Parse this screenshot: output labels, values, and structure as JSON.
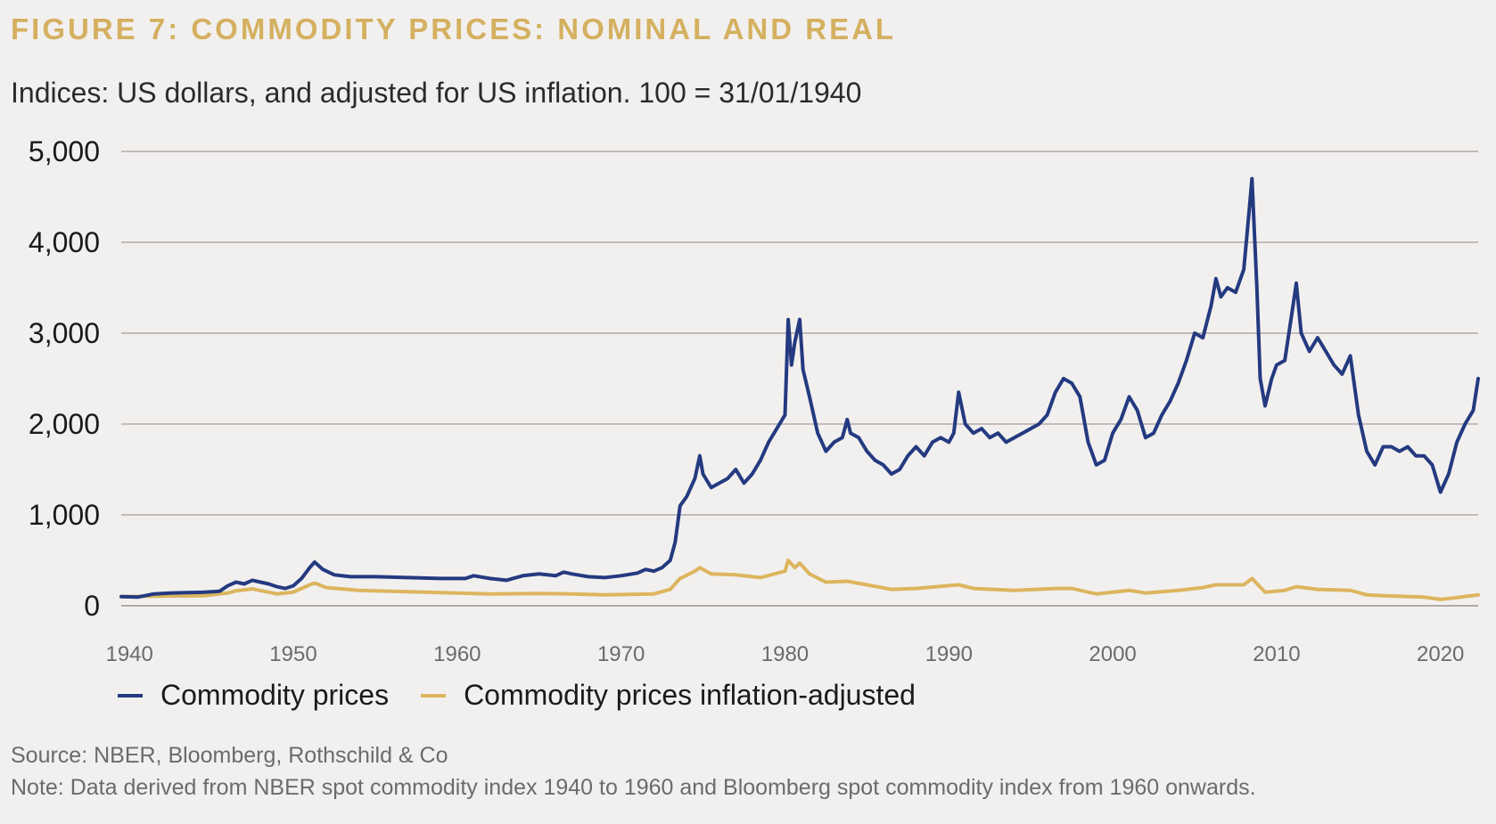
{
  "header": {
    "title": "FIGURE 7: COMMODITY PRICES: NOMINAL AND REAL",
    "subtitle": "Indices: US dollars, and adjusted for US inflation. 100 = 31/01/1940"
  },
  "footer": {
    "source": "Source: NBER, Bloomberg, Rothschild & Co",
    "note": "Note: Data derived from NBER spot commodity index 1940 to 1960 and Bloomberg spot commodity index from 1960 onwards."
  },
  "colors": {
    "nominal": "#243a80",
    "real": "#dcb55e",
    "title": "#d4b060",
    "grid": "#a99a9a"
  },
  "chart_data": {
    "type": "line",
    "title": "FIGURE 7: COMMODITY PRICES: NOMINAL AND REAL",
    "subtitle": "Indices: US dollars, and adjusted for US inflation. 100 = 31/01/1940",
    "xlabel": "",
    "ylabel": "",
    "xlim": [
      1939.5,
      2022.3
    ],
    "ylim": [
      0,
      5000
    ],
    "grid": true,
    "legend_position": "bottom-left",
    "x_ticks": [
      1940,
      1950,
      1960,
      1970,
      1980,
      1990,
      2000,
      2010,
      2020
    ],
    "x_tick_labels": [
      "1940",
      "1950",
      "1960",
      "1970",
      "1980",
      "1990",
      "2000",
      "2010",
      "2020"
    ],
    "y_ticks": [
      0,
      1000,
      2000,
      3000,
      4000,
      5000
    ],
    "y_tick_labels": [
      "0",
      "1,000",
      "2,000",
      "3,000",
      "4,000",
      "5,000"
    ],
    "series": [
      {
        "name": "Commodity prices",
        "color": "#243a80",
        "points": [
          [
            1939.5,
            100
          ],
          [
            1940.5,
            95
          ],
          [
            1941.5,
            130
          ],
          [
            1942.5,
            140
          ],
          [
            1943.5,
            145
          ],
          [
            1944.5,
            148
          ],
          [
            1945.5,
            160
          ],
          [
            1946.0,
            220
          ],
          [
            1946.5,
            260
          ],
          [
            1947.0,
            240
          ],
          [
            1947.5,
            280
          ],
          [
            1948.0,
            260
          ],
          [
            1948.5,
            240
          ],
          [
            1949.0,
            210
          ],
          [
            1949.5,
            190
          ],
          [
            1950.0,
            220
          ],
          [
            1950.5,
            300
          ],
          [
            1951.0,
            420
          ],
          [
            1951.3,
            480
          ],
          [
            1951.8,
            400
          ],
          [
            1952.5,
            340
          ],
          [
            1953.5,
            320
          ],
          [
            1955.0,
            320
          ],
          [
            1957.0,
            310
          ],
          [
            1959.0,
            300
          ],
          [
            1960.5,
            300
          ],
          [
            1961.0,
            330
          ],
          [
            1962.0,
            300
          ],
          [
            1963.0,
            280
          ],
          [
            1964.0,
            330
          ],
          [
            1965.0,
            350
          ],
          [
            1966.0,
            330
          ],
          [
            1966.5,
            370
          ],
          [
            1967.0,
            350
          ],
          [
            1968.0,
            320
          ],
          [
            1969.0,
            310
          ],
          [
            1970.0,
            330
          ],
          [
            1971.0,
            360
          ],
          [
            1971.5,
            400
          ],
          [
            1972.0,
            380
          ],
          [
            1972.5,
            420
          ],
          [
            1973.0,
            500
          ],
          [
            1973.3,
            700
          ],
          [
            1973.6,
            1100
          ],
          [
            1974.0,
            1200
          ],
          [
            1974.5,
            1400
          ],
          [
            1974.8,
            1650
          ],
          [
            1975.0,
            1450
          ],
          [
            1975.5,
            1300
          ],
          [
            1976.0,
            1350
          ],
          [
            1976.5,
            1400
          ],
          [
            1977.0,
            1500
          ],
          [
            1977.5,
            1350
          ],
          [
            1978.0,
            1450
          ],
          [
            1978.5,
            1600
          ],
          [
            1979.0,
            1800
          ],
          [
            1979.5,
            1950
          ],
          [
            1980.0,
            2100
          ],
          [
            1980.2,
            3150
          ],
          [
            1980.4,
            2650
          ],
          [
            1980.6,
            2900
          ],
          [
            1980.9,
            3150
          ],
          [
            1981.1,
            2600
          ],
          [
            1981.5,
            2300
          ],
          [
            1982.0,
            1900
          ],
          [
            1982.5,
            1700
          ],
          [
            1983.0,
            1800
          ],
          [
            1983.5,
            1850
          ],
          [
            1983.8,
            2050
          ],
          [
            1984.0,
            1900
          ],
          [
            1984.5,
            1850
          ],
          [
            1985.0,
            1700
          ],
          [
            1985.5,
            1600
          ],
          [
            1986.0,
            1550
          ],
          [
            1986.5,
            1450
          ],
          [
            1987.0,
            1500
          ],
          [
            1987.5,
            1650
          ],
          [
            1988.0,
            1750
          ],
          [
            1988.5,
            1650
          ],
          [
            1989.0,
            1800
          ],
          [
            1989.5,
            1850
          ],
          [
            1990.0,
            1800
          ],
          [
            1990.3,
            1900
          ],
          [
            1990.6,
            2350
          ],
          [
            1991.0,
            2000
          ],
          [
            1991.5,
            1900
          ],
          [
            1992.0,
            1950
          ],
          [
            1992.5,
            1850
          ],
          [
            1993.0,
            1900
          ],
          [
            1993.5,
            1800
          ],
          [
            1994.0,
            1850
          ],
          [
            1994.5,
            1900
          ],
          [
            1995.0,
            1950
          ],
          [
            1995.5,
            2000
          ],
          [
            1996.0,
            2100
          ],
          [
            1996.5,
            2350
          ],
          [
            1997.0,
            2500
          ],
          [
            1997.5,
            2450
          ],
          [
            1998.0,
            2300
          ],
          [
            1998.5,
            1800
          ],
          [
            1999.0,
            1550
          ],
          [
            1999.5,
            1600
          ],
          [
            2000.0,
            1900
          ],
          [
            2000.5,
            2050
          ],
          [
            2001.0,
            2300
          ],
          [
            2001.5,
            2150
          ],
          [
            2002.0,
            1850
          ],
          [
            2002.5,
            1900
          ],
          [
            2003.0,
            2100
          ],
          [
            2003.5,
            2250
          ],
          [
            2004.0,
            2450
          ],
          [
            2004.5,
            2700
          ],
          [
            2005.0,
            3000
          ],
          [
            2005.5,
            2950
          ],
          [
            2006.0,
            3300
          ],
          [
            2006.3,
            3600
          ],
          [
            2006.6,
            3400
          ],
          [
            2007.0,
            3500
          ],
          [
            2007.5,
            3450
          ],
          [
            2008.0,
            3700
          ],
          [
            2008.3,
            4300
          ],
          [
            2008.5,
            4700
          ],
          [
            2008.8,
            3500
          ],
          [
            2009.0,
            2500
          ],
          [
            2009.3,
            2200
          ],
          [
            2009.7,
            2500
          ],
          [
            2010.0,
            2650
          ],
          [
            2010.5,
            2700
          ],
          [
            2011.0,
            3300
          ],
          [
            2011.2,
            3550
          ],
          [
            2011.5,
            3000
          ],
          [
            2012.0,
            2800
          ],
          [
            2012.5,
            2950
          ],
          [
            2013.0,
            2800
          ],
          [
            2013.5,
            2650
          ],
          [
            2014.0,
            2550
          ],
          [
            2014.5,
            2750
          ],
          [
            2015.0,
            2100
          ],
          [
            2015.5,
            1700
          ],
          [
            2016.0,
            1550
          ],
          [
            2016.5,
            1750
          ],
          [
            2017.0,
            1750
          ],
          [
            2017.5,
            1700
          ],
          [
            2018.0,
            1750
          ],
          [
            2018.5,
            1650
          ],
          [
            2019.0,
            1650
          ],
          [
            2019.5,
            1550
          ],
          [
            2020.0,
            1250
          ],
          [
            2020.5,
            1450
          ],
          [
            2021.0,
            1800
          ],
          [
            2021.5,
            2000
          ],
          [
            2022.0,
            2150
          ],
          [
            2022.3,
            2500
          ]
        ]
      },
      {
        "name": "Commodity prices inflation-adjusted",
        "color": "#dcb55e",
        "points": [
          [
            1939.5,
            100
          ],
          [
            1941.5,
            105
          ],
          [
            1944.5,
            110
          ],
          [
            1946.0,
            140
          ],
          [
            1946.5,
            165
          ],
          [
            1947.5,
            185
          ],
          [
            1949.0,
            130
          ],
          [
            1950.0,
            150
          ],
          [
            1951.0,
            230
          ],
          [
            1951.3,
            250
          ],
          [
            1952.0,
            200
          ],
          [
            1954.0,
            170
          ],
          [
            1957.0,
            155
          ],
          [
            1960.0,
            140
          ],
          [
            1962.0,
            130
          ],
          [
            1965.0,
            135
          ],
          [
            1967.0,
            130
          ],
          [
            1969.0,
            120
          ],
          [
            1972.0,
            130
          ],
          [
            1973.0,
            180
          ],
          [
            1973.6,
            300
          ],
          [
            1974.5,
            380
          ],
          [
            1974.8,
            420
          ],
          [
            1975.5,
            350
          ],
          [
            1977.0,
            340
          ],
          [
            1978.5,
            310
          ],
          [
            1980.0,
            380
          ],
          [
            1980.2,
            500
          ],
          [
            1980.6,
            420
          ],
          [
            1980.9,
            470
          ],
          [
            1981.5,
            350
          ],
          [
            1982.5,
            260
          ],
          [
            1983.8,
            270
          ],
          [
            1985.0,
            230
          ],
          [
            1986.5,
            180
          ],
          [
            1988.0,
            190
          ],
          [
            1990.6,
            230
          ],
          [
            1991.5,
            190
          ],
          [
            1994.0,
            170
          ],
          [
            1996.5,
            190
          ],
          [
            1997.5,
            190
          ],
          [
            1998.5,
            150
          ],
          [
            1999.0,
            130
          ],
          [
            2001.0,
            170
          ],
          [
            2002.0,
            140
          ],
          [
            2004.0,
            170
          ],
          [
            2005.5,
            200
          ],
          [
            2006.3,
            230
          ],
          [
            2008.0,
            230
          ],
          [
            2008.5,
            300
          ],
          [
            2009.3,
            150
          ],
          [
            2010.5,
            170
          ],
          [
            2011.2,
            210
          ],
          [
            2012.5,
            180
          ],
          [
            2014.5,
            170
          ],
          [
            2015.5,
            120
          ],
          [
            2016.5,
            110
          ],
          [
            2019.0,
            95
          ],
          [
            2020.0,
            70
          ],
          [
            2021.0,
            90
          ],
          [
            2022.3,
            120
          ]
        ]
      }
    ]
  }
}
